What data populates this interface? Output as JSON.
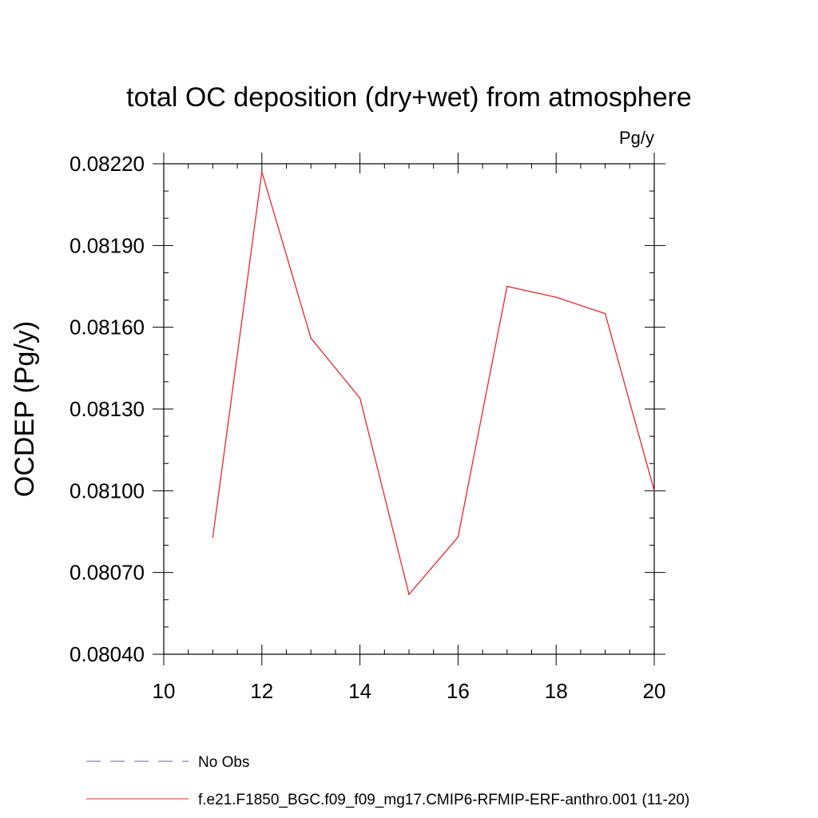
{
  "chart_data": {
    "type": "line",
    "title": "total OC deposition (dry+wet) from atmosphere",
    "units": "Pg/y",
    "ylabel": "OCDEP  (Pg/y)",
    "xlabel": "",
    "xlim": [
      10,
      20
    ],
    "ylim": [
      0.0804,
      0.0822
    ],
    "x_ticks": [
      "10",
      "12",
      "14",
      "16",
      "18",
      "20"
    ],
    "y_ticks": [
      "0.08040",
      "0.08070",
      "0.08100",
      "0.08130",
      "0.08160",
      "0.08190",
      "0.08220"
    ],
    "grid": false,
    "legend_position": "bottom",
    "legend": [
      {
        "label": "No Obs",
        "color": "#6c5fa7",
        "dashed": true
      },
      {
        "label": "f.e21.F1850_BGC.f09_f09_mg17.CMIP6-RFMIP-ERF-anthro.001 (11-20)",
        "color": "#e8262b",
        "dashed": false
      }
    ],
    "series": [
      {
        "name": "f.e21.F1850_BGC.f09_f09_mg17.CMIP6-RFMIP-ERF-anthro.001 (11-20)",
        "color": "#e8262b",
        "x": [
          11,
          12,
          13,
          14,
          15,
          16,
          17,
          18,
          19,
          20
        ],
        "y": [
          0.08083,
          0.08217,
          0.08156,
          0.08134,
          0.08062,
          0.08083,
          0.08175,
          0.08171,
          0.08165,
          0.081
        ]
      }
    ]
  }
}
